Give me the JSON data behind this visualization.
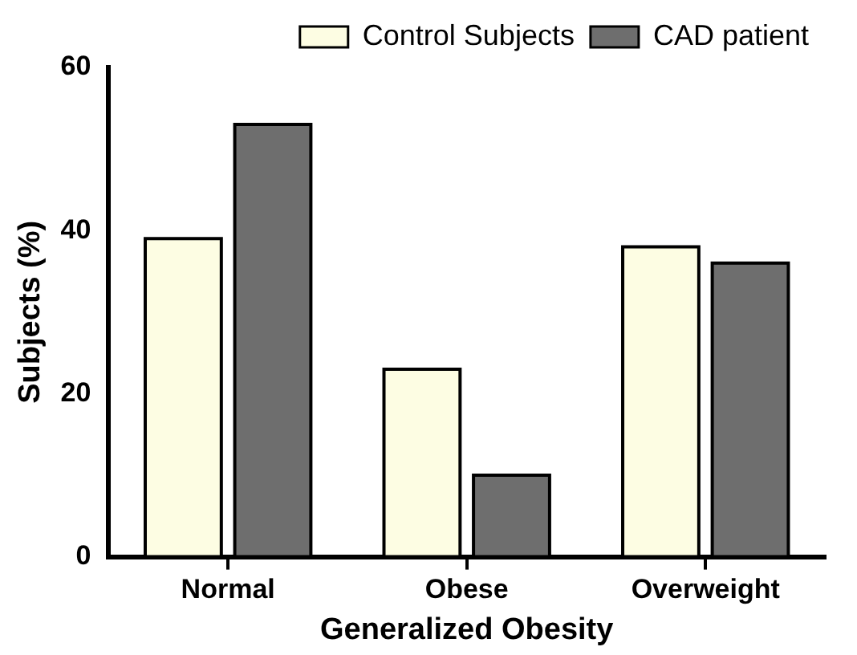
{
  "chart_data": {
    "type": "bar",
    "xlabel": "Generalized Obesity",
    "ylabel": "Subjects (%)",
    "categories": [
      "Normal",
      "Obese",
      "Overweight"
    ],
    "series": [
      {
        "name": "Control Subjects",
        "color": "#fdfde3",
        "values": [
          39,
          23,
          38
        ]
      },
      {
        "name": "CAD patient",
        "color": "#6e6e6e",
        "values": [
          53,
          10,
          36
        ]
      }
    ],
    "ylim": [
      0,
      60
    ],
    "yticks": [
      0,
      20,
      40,
      60
    ],
    "grid": false,
    "legend": "top right"
  }
}
